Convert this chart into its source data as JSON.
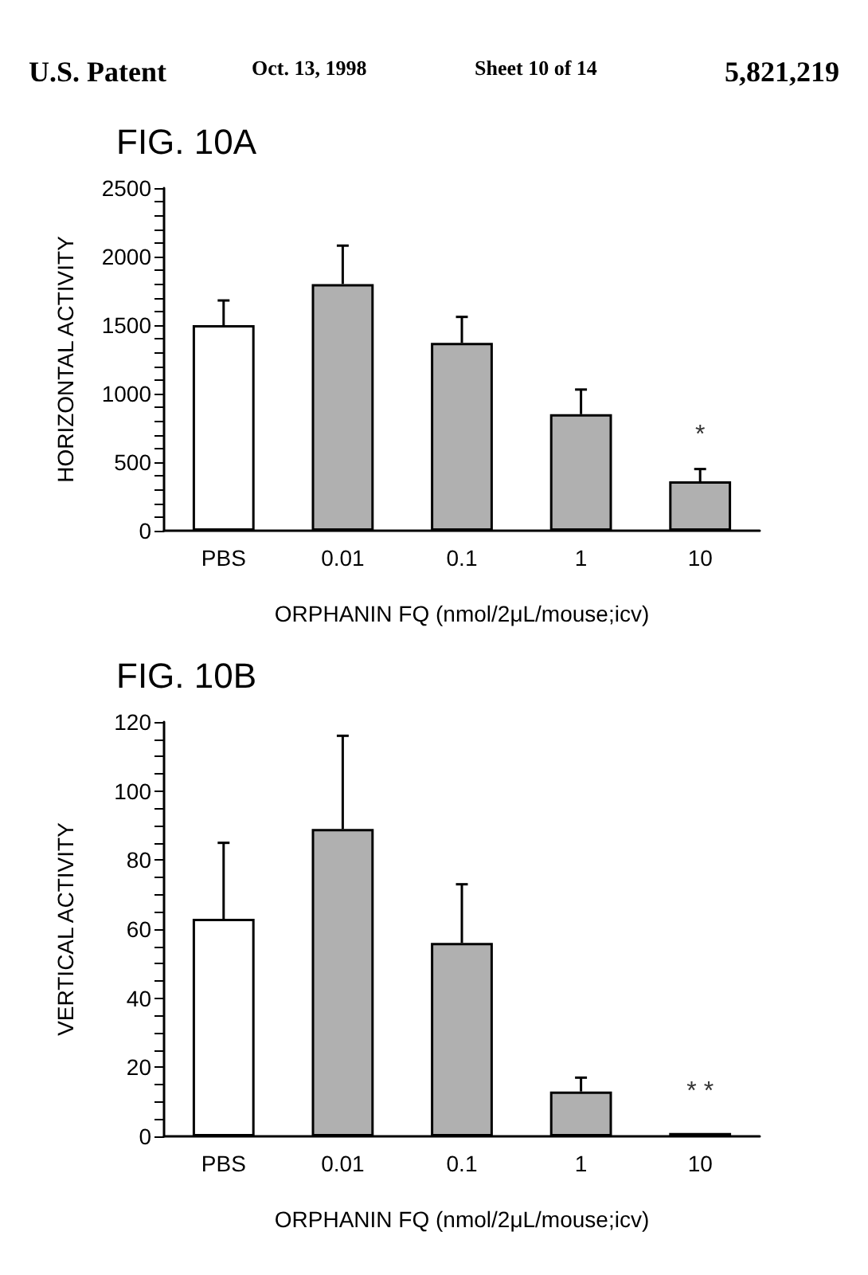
{
  "chart_data": [
    {
      "type": "bar",
      "title": "FIG. 10A",
      "xlabel": "ORPHANIN FQ (nmol/2μL/mouse;icv)",
      "ylabel": "HORIZONTAL ACTIVITY",
      "categories": [
        "PBS",
        "0.01",
        "0.1",
        "1",
        "10"
      ],
      "values": [
        1500,
        1800,
        1370,
        850,
        360
      ],
      "errors": [
        [
          1500,
          1680
        ],
        [
          1800,
          2080
        ],
        [
          1370,
          1560
        ],
        [
          850,
          1030
        ],
        [
          360,
          450
        ]
      ],
      "colors": [
        "#ffffff",
        "#b0b0b0",
        "#b0b0b0",
        "#b0b0b0",
        "#b0b0b0"
      ],
      "ylim": [
        0,
        2500
      ],
      "yticks": [
        0,
        {
          "value": 100,
          "label": null
        },
        {
          "value": 200,
          "label": null
        },
        {
          "value": 300,
          "label": null
        },
        {
          "value": 400,
          "label": null
        },
        500,
        {
          "value": 600,
          "label": null
        },
        {
          "value": 700,
          "label": null
        },
        {
          "value": 800,
          "label": null
        },
        {
          "value": 900,
          "label": null
        },
        1000,
        {
          "value": 1100,
          "label": null
        },
        {
          "value": 1200,
          "label": null
        },
        {
          "value": 1300,
          "label": null
        },
        {
          "value": 1400,
          "label": null
        },
        1500,
        {
          "value": 1600,
          "label": null
        },
        {
          "value": 1700,
          "label": null
        },
        {
          "value": 1800,
          "label": null
        },
        {
          "value": 1900,
          "label": null
        },
        2000,
        {
          "value": 2100,
          "label": null
        },
        {
          "value": 2200,
          "label": null
        },
        {
          "value": 2300,
          "label": null
        },
        {
          "value": 2400,
          "label": null
        },
        2500
      ],
      "grid": false,
      "annotations": [
        "U.S. Patent",
        "Oct. 13, 1998",
        "Sheet 10 of 14",
        "5,821,219",
        "*"
      ]
    },
    {
      "type": "bar",
      "title": "FIG. 10B",
      "xlabel": "ORPHANIN FQ (nmol/2μL/mouse;icv)",
      "ylabel": "VERTICAL ACTIVITY",
      "categories": [
        "PBS",
        "0.01",
        "0.1",
        "1",
        "10"
      ],
      "values": [
        63,
        89,
        56,
        13,
        1
      ],
      "errors": [
        [
          63,
          85
        ],
        [
          89,
          116
        ],
        [
          56,
          73
        ],
        [
          13,
          17
        ],
        null
      ],
      "colors": [
        "#ffffff",
        "#b0b0b0",
        "#b0b0b0",
        "#b0b0b0",
        "#b0b0b0"
      ],
      "ylim": [
        0,
        120
      ],
      "yticks": [
        0,
        {
          "value": 5,
          "label": null
        },
        {
          "value": 10,
          "label": null
        },
        {
          "value": 15,
          "label": null
        },
        20,
        {
          "value": 25,
          "label": null
        },
        {
          "value": 30,
          "label": null
        },
        {
          "value": 35,
          "label": null
        },
        40,
        {
          "value": 45,
          "label": null
        },
        {
          "value": 50,
          "label": null
        },
        {
          "value": 55,
          "label": null
        },
        60,
        {
          "value": 65,
          "label": null
        },
        {
          "value": 70,
          "label": null
        },
        {
          "value": 75,
          "label": null
        },
        80,
        {
          "value": 85,
          "label": null
        },
        {
          "value": 90,
          "label": null
        },
        {
          "value": 95,
          "label": null
        },
        100,
        {
          "value": 105,
          "label": null
        },
        {
          "value": 110,
          "label": null
        },
        {
          "value": 115,
          "label": null
        },
        120
      ],
      "grid": false,
      "annotations": [
        "* *"
      ]
    }
  ]
}
